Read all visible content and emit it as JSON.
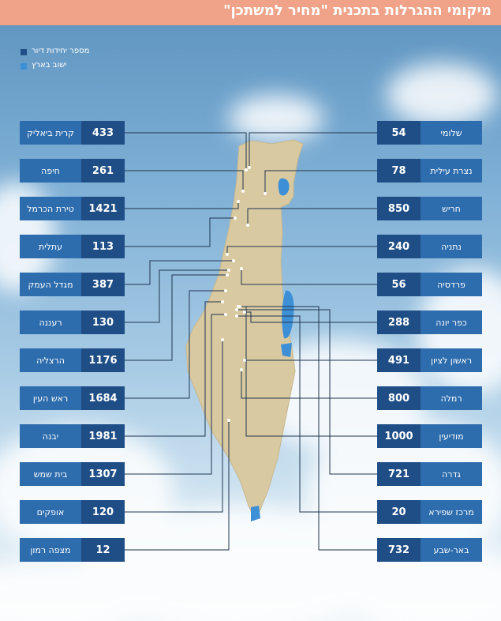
{
  "title": "מיקומי ההגרלות בתכנית \"מחיר למשתכן\"",
  "legend": {
    "units": "מספר יחידות דיור",
    "town": "ישוב בארץ"
  },
  "colors": {
    "header": "#f0a389",
    "number_box": "#1f4e86",
    "name_box": "#2d6cad",
    "land": "#d9c9a0",
    "water": "#3d8fd6",
    "connector": "#1f3550"
  },
  "left_towns": [
    {
      "name": "קרית ביאליק",
      "units": "433"
    },
    {
      "name": "חיפה",
      "units": "261"
    },
    {
      "name": "טירת הכרמל",
      "units": "1421"
    },
    {
      "name": "עתלית",
      "units": "113"
    },
    {
      "name": "מגדל העמק",
      "units": "387"
    },
    {
      "name": "רעננה",
      "units": "130"
    },
    {
      "name": "הרצליה",
      "units": "1176"
    },
    {
      "name": "ראש העין",
      "units": "1684"
    },
    {
      "name": "יבנה",
      "units": "1981"
    },
    {
      "name": "בית שמש",
      "units": "1307"
    },
    {
      "name": "אופקים",
      "units": "120"
    },
    {
      "name": "מצפה רמון",
      "units": "12"
    }
  ],
  "right_towns": [
    {
      "name": "שלומי",
      "units": "54"
    },
    {
      "name": "נצרת עילית",
      "units": "78"
    },
    {
      "name": "חריש",
      "units": "850"
    },
    {
      "name": "נתניה",
      "units": "240"
    },
    {
      "name": "פרדסיה",
      "units": "56"
    },
    {
      "name": "כפר יונה",
      "units": "288"
    },
    {
      "name": "ראשון לציון",
      "units": "491"
    },
    {
      "name": "רמלה",
      "units": "800"
    },
    {
      "name": "מודיעין",
      "units": "1000"
    },
    {
      "name": "גדרה",
      "units": "721"
    },
    {
      "name": "מרכז שפירא",
      "units": "20"
    },
    {
      "name": "באר-שבע",
      "units": "732"
    }
  ]
}
